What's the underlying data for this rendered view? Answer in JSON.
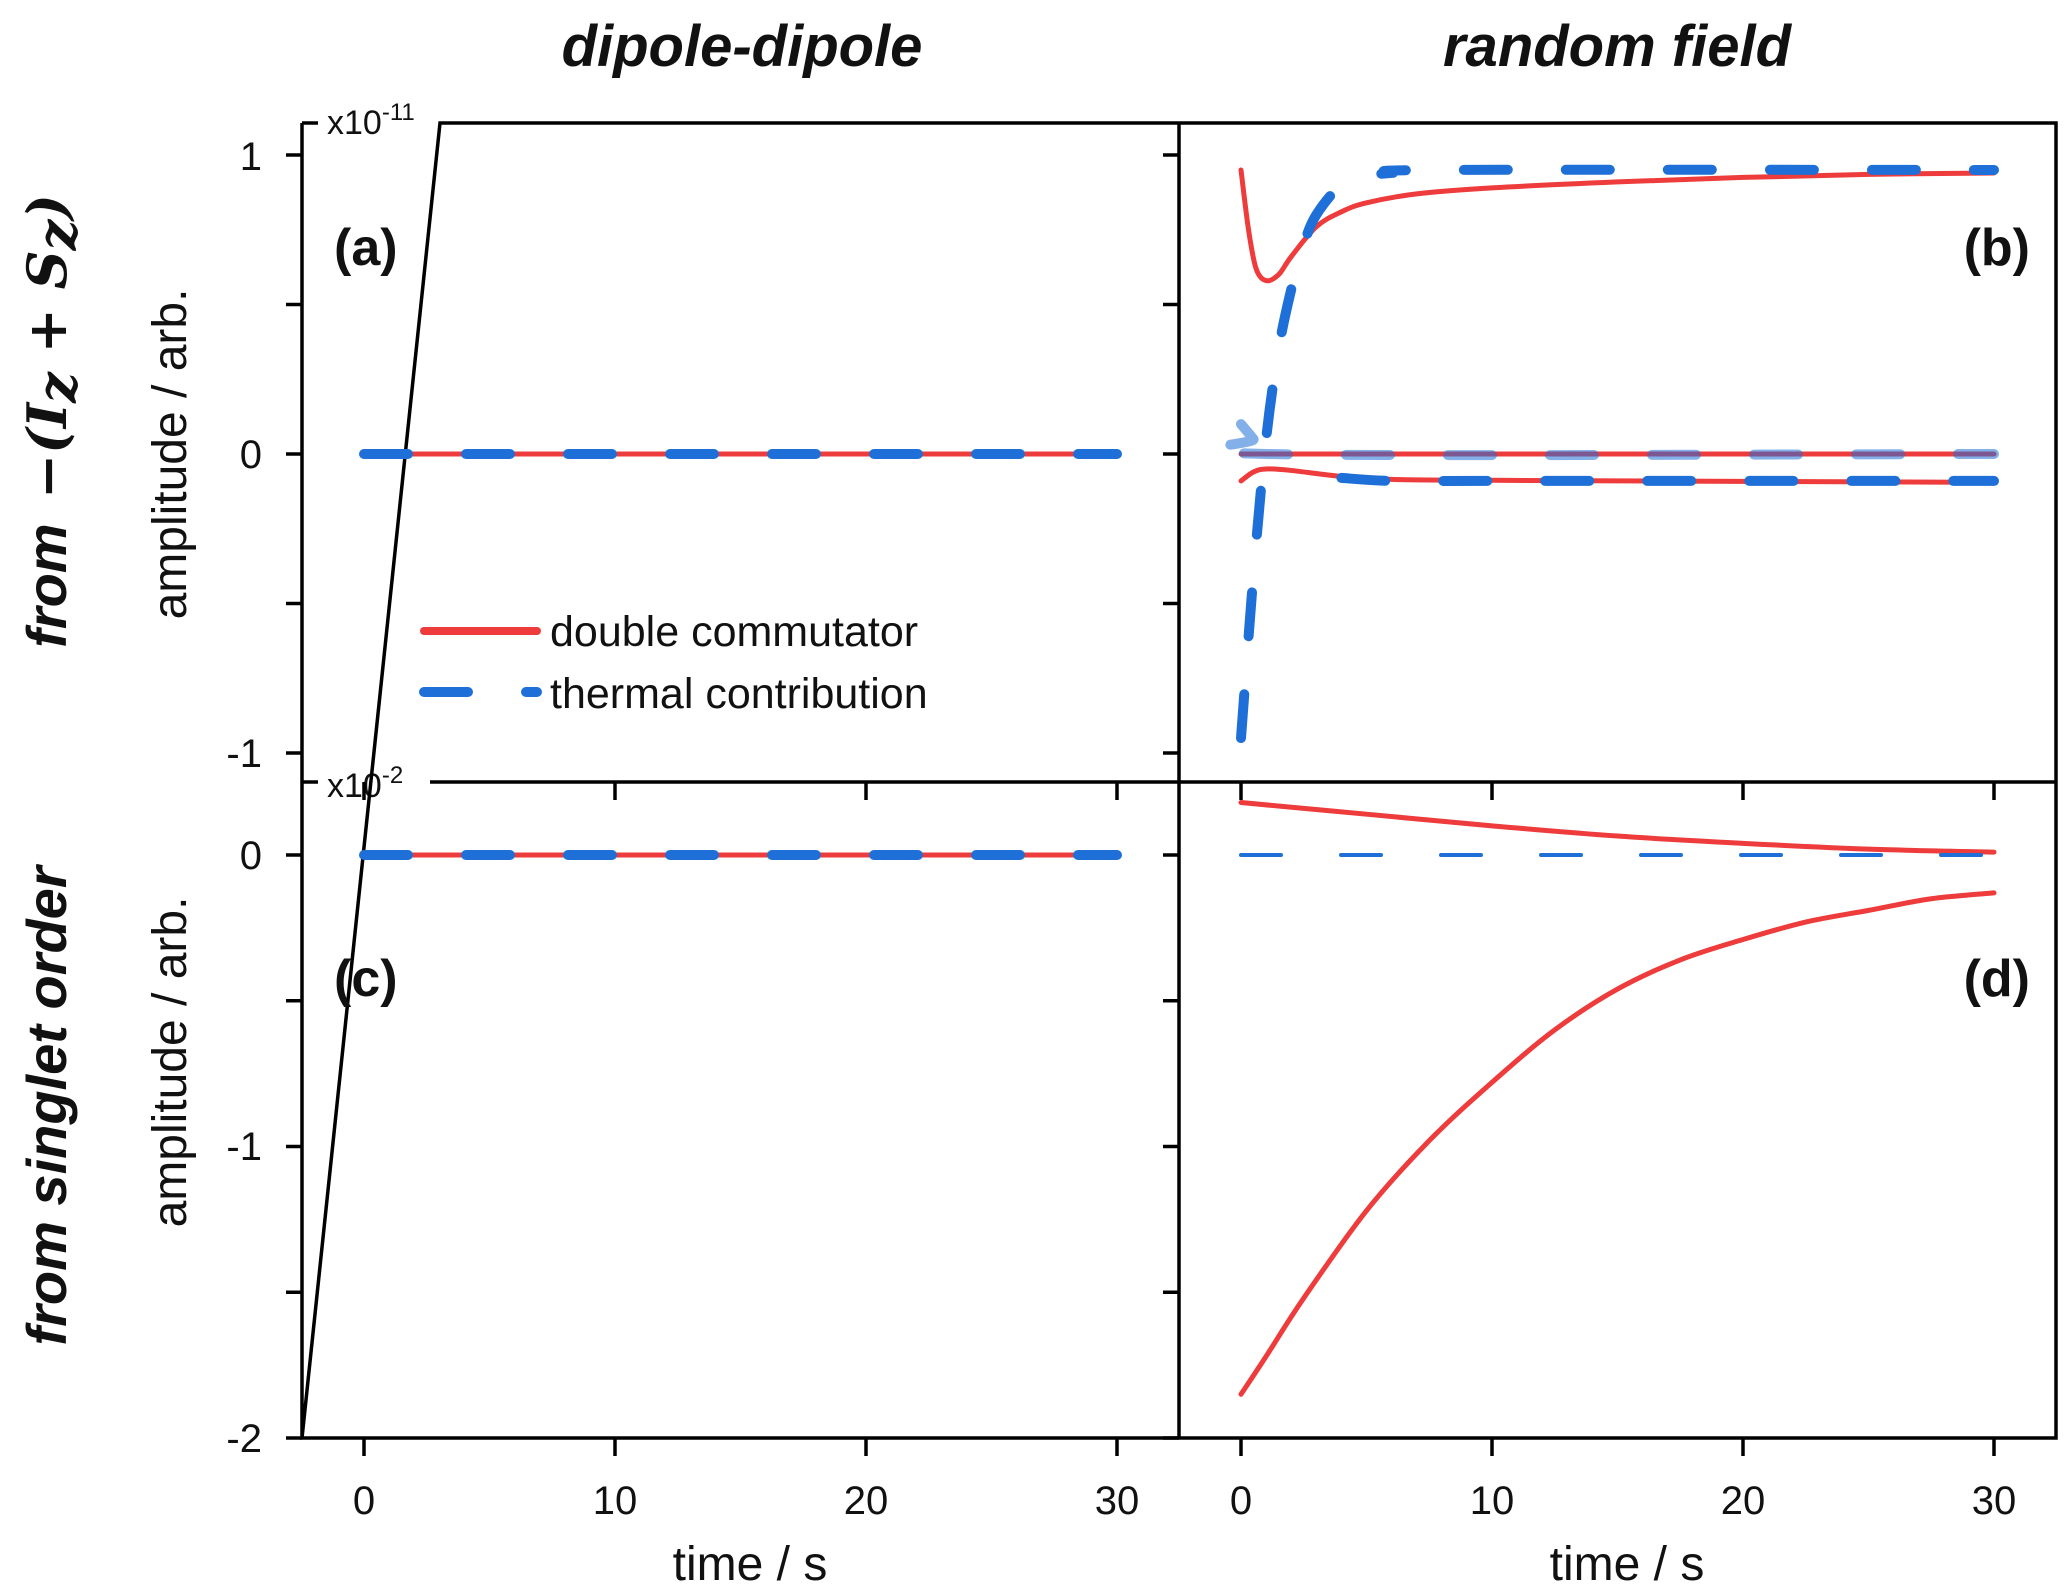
{
  "chart_data": {
    "type": "line",
    "columns": [
      "dipole-dipole",
      "random field"
    ],
    "rows": {
      "top": {
        "prefix": "from",
        "math": "−(I",
        "sub1": "z",
        "mid": " + S",
        "sub2": "z",
        "close": ")"
      },
      "bottom": "from singlet order"
    },
    "ylabel": "amplitude / arb.",
    "xlabel": "time / s",
    "xticks": [
      "0",
      "10",
      "20",
      "30"
    ],
    "xlim": [
      0,
      30
    ],
    "legend": {
      "placement": "lower-center of panel (a)",
      "entries": [
        "double commutator",
        "thermal contribution"
      ]
    },
    "colors": {
      "double_commutator": "#ee3b3b",
      "thermal_contribution": "#1f6fd8"
    },
    "top_row": {
      "multiplier": "x10",
      "multiplier_exp": "-11",
      "ylim": [
        -1.1,
        1.1
      ],
      "yticks": [
        "1",
        "0",
        "-1"
      ]
    },
    "bottom_row": {
      "multiplier": "x10",
      "multiplier_exp": "-2",
      "ylim": [
        -2,
        0.25
      ],
      "yticks": [
        "0",
        "-1",
        "-2"
      ]
    },
    "panels": [
      {
        "label": "(a)",
        "row": "top",
        "col": 0,
        "series": [
          {
            "name": "double commutator",
            "style": "solid",
            "points": [
              [
                0,
                0
              ],
              [
                30,
                0
              ]
            ]
          },
          {
            "name": "thermal contribution",
            "style": "dashed",
            "points": [
              [
                0,
                0
              ],
              [
                30,
                0
              ]
            ]
          }
        ]
      },
      {
        "label": "(b)",
        "row": "top",
        "col": 1,
        "series": [
          {
            "name": "double commutator",
            "style": "solid",
            "points": [
              [
                0,
                0.95
              ],
              [
                0.3,
                0.75
              ],
              [
                0.6,
                0.62
              ],
              [
                1,
                0.58
              ],
              [
                1.5,
                0.6
              ],
              [
                2,
                0.66
              ],
              [
                3,
                0.76
              ],
              [
                4,
                0.81
              ],
              [
                5,
                0.84
              ],
              [
                7,
                0.87
              ],
              [
                10,
                0.89
              ],
              [
                15,
                0.91
              ],
              [
                20,
                0.925
              ],
              [
                25,
                0.935
              ],
              [
                30,
                0.94
              ]
            ]
          },
          {
            "name": "thermal contribution",
            "style": "dashed",
            "points": [
              [
                0,
                -0.95
              ],
              [
                0.5,
                -0.4
              ],
              [
                1,
                0.05
              ],
              [
                1.5,
                0.35
              ],
              [
                2,
                0.55
              ],
              [
                2.5,
                0.7
              ],
              [
                3,
                0.8
              ],
              [
                4,
                0.9
              ],
              [
                5,
                0.93
              ],
              [
                6,
                0.94
              ],
              [
                8,
                0.95
              ],
              [
                30,
                0.95
              ]
            ]
          },
          {
            "name": "double commutator",
            "style": "solid",
            "points": [
              [
                0,
                0
              ],
              [
                30,
                0
              ]
            ]
          },
          {
            "name": "thermal contribution",
            "style": "dashed-faint",
            "points": [
              [
                0,
                0.1
              ],
              [
                0.5,
                0.05
              ],
              [
                1,
                0
              ],
              [
                30,
                0
              ]
            ]
          },
          {
            "name": "double commutator",
            "style": "solid",
            "points": [
              [
                0,
                -0.09
              ],
              [
                0.5,
                -0.06
              ],
              [
                1,
                -0.05
              ],
              [
                2,
                -0.055
              ],
              [
                4,
                -0.075
              ],
              [
                6,
                -0.085
              ],
              [
                10,
                -0.088
              ],
              [
                30,
                -0.095
              ]
            ]
          },
          {
            "name": "thermal contribution",
            "style": "dashed",
            "points": [
              [
                4,
                -0.08
              ],
              [
                6,
                -0.09
              ],
              [
                10,
                -0.09
              ],
              [
                30,
                -0.09
              ]
            ]
          }
        ]
      },
      {
        "label": "(c)",
        "row": "bottom",
        "col": 0,
        "series": [
          {
            "name": "double commutator",
            "style": "solid",
            "points": [
              [
                0,
                0
              ],
              [
                30,
                0
              ]
            ]
          },
          {
            "name": "thermal contribution",
            "style": "dashed",
            "points": [
              [
                0,
                0
              ],
              [
                30,
                0
              ]
            ]
          }
        ]
      },
      {
        "label": "(d)",
        "row": "bottom",
        "col": 1,
        "series": [
          {
            "name": "double commutator",
            "style": "solid",
            "points": [
              [
                0,
                0.18
              ],
              [
                5,
                0.14
              ],
              [
                10,
                0.1
              ],
              [
                15,
                0.065
              ],
              [
                20,
                0.04
              ],
              [
                25,
                0.02
              ],
              [
                30,
                0.01
              ]
            ]
          },
          {
            "name": "thermal contribution",
            "style": "dashed-thin",
            "points": [
              [
                0,
                0
              ],
              [
                30,
                0
              ]
            ]
          },
          {
            "name": "double commutator",
            "style": "solid",
            "points": [
              [
                0,
                -1.85
              ],
              [
                1,
                -1.72
              ],
              [
                2.5,
                -1.52
              ],
              [
                5,
                -1.22
              ],
              [
                7.5,
                -0.98
              ],
              [
                10,
                -0.78
              ],
              [
                12.5,
                -0.6
              ],
              [
                15,
                -0.46
              ],
              [
                17.5,
                -0.36
              ],
              [
                20,
                -0.29
              ],
              [
                22.5,
                -0.23
              ],
              [
                25,
                -0.19
              ],
              [
                27.5,
                -0.15
              ],
              [
                30,
                -0.13
              ]
            ]
          }
        ]
      }
    ]
  }
}
